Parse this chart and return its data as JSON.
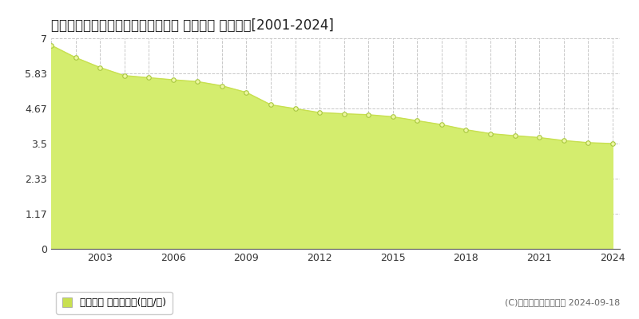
{
  "title": "北海道稚内市港４丁目２２番１０外 基準地価 地価推移[2001-2024]",
  "years": [
    2001,
    2002,
    2003,
    2004,
    2005,
    2006,
    2007,
    2008,
    2009,
    2010,
    2011,
    2012,
    2013,
    2014,
    2015,
    2016,
    2017,
    2018,
    2019,
    2020,
    2021,
    2022,
    2023,
    2024
  ],
  "values": [
    6.77,
    6.36,
    6.03,
    5.76,
    5.69,
    5.62,
    5.56,
    5.42,
    5.2,
    4.79,
    4.66,
    4.53,
    4.49,
    4.46,
    4.39,
    4.26,
    4.13,
    3.96,
    3.83,
    3.76,
    3.7,
    3.6,
    3.53,
    3.5
  ],
  "ylim": [
    0,
    7
  ],
  "yticks": [
    0,
    1.17,
    2.33,
    3.5,
    4.67,
    5.83,
    7
  ],
  "ytick_labels": [
    "0",
    "1.17",
    "2.33",
    "3.5",
    "4.67",
    "5.83",
    "7"
  ],
  "xticks": [
    2001,
    2003,
    2006,
    2009,
    2012,
    2015,
    2018,
    2021,
    2024
  ],
  "xtick_labels": [
    "",
    "2003",
    "2006",
    "2009",
    "2012",
    "2015",
    "2018",
    "2021",
    "2024"
  ],
  "fill_color": "#d4ed6e",
  "line_color": "#c8e050",
  "marker_facecolor": "#edf7a0",
  "marker_edgecolor": "#a8c840",
  "grid_color": "#c8c8c8",
  "bg_color": "#ffffff",
  "plot_bg_color": "#ffffff",
  "title_fontsize": 12,
  "tick_fontsize": 9,
  "legend_label": "基準地価 平均坪単価(万円/坪)",
  "legend_square_color": "#c8e050",
  "copyright_text": "(C)土地価格ドットコム 2024-09-18",
  "copyright_fontsize": 8
}
